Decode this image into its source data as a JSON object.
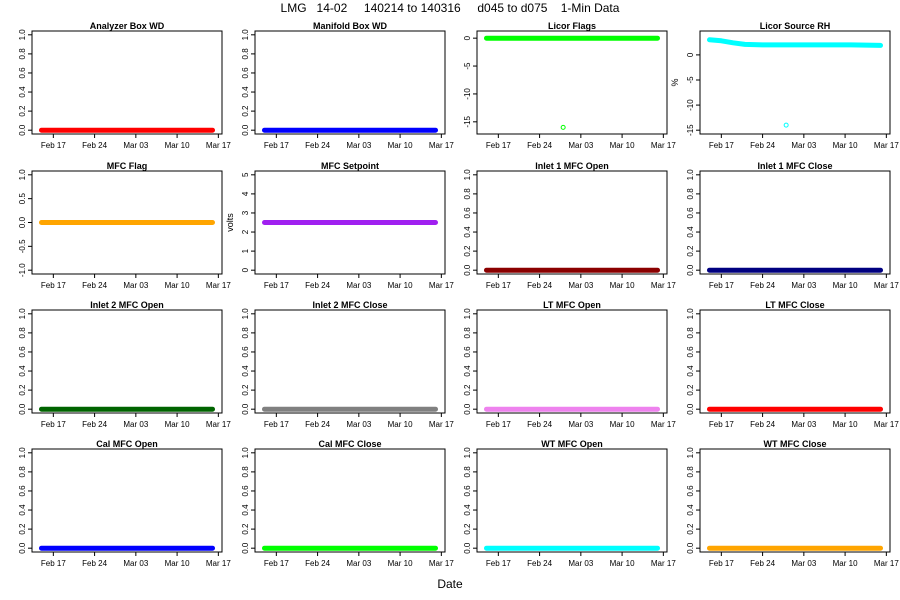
{
  "figure": {
    "title": "LMG   14-02     140214 to 140316     d045 to d075    1-Min Data",
    "xlabel": "Date"
  },
  "x_axis": {
    "range": [
      "2014-02-14",
      "2014-03-17"
    ],
    "ticks": [
      "2014-02-17",
      "2014-02-24",
      "2014-03-03",
      "2014-03-10",
      "2014-03-17"
    ],
    "tick_labels": [
      "Feb 17",
      "Feb 24",
      "Mar 03",
      "Mar 10",
      "Mar 17"
    ]
  },
  "chart_data": [
    {
      "type": "scatter",
      "title": "Analyzer Box WD",
      "ylabel": "",
      "color": "#ff0000",
      "ylim": [
        0,
        1
      ],
      "yticks": [
        "0.0",
        "0.2",
        "0.4",
        "0.6",
        "0.8",
        "1.0"
      ],
      "series": [
        {
          "x": [
            "2014-02-15",
            "2014-03-16"
          ],
          "y": [
            0,
            0
          ]
        }
      ],
      "outliers": []
    },
    {
      "type": "scatter",
      "title": "Manifold Box WD",
      "ylabel": "",
      "color": "#0000ff",
      "ylim": [
        0,
        1
      ],
      "yticks": [
        "0.0",
        "0.2",
        "0.4",
        "0.6",
        "0.8",
        "1.0"
      ],
      "series": [
        {
          "x": [
            "2014-02-15",
            "2014-03-16"
          ],
          "y": [
            0,
            0
          ]
        }
      ],
      "outliers": []
    },
    {
      "type": "scatter",
      "title": "Licor Flags",
      "ylabel": "",
      "color": "#00ff00",
      "ylim": [
        -16.5,
        0.6
      ],
      "yticks": [
        "-15",
        "-10",
        "-5",
        "0"
      ],
      "series": [
        {
          "x": [
            "2014-02-15",
            "2014-03-16"
          ],
          "y": [
            0,
            0
          ]
        }
      ],
      "outliers": [
        {
          "x": "2014-02-28",
          "y": -16
        }
      ]
    },
    {
      "type": "scatter",
      "title": "Licor Source RH",
      "ylabel": "%",
      "color": "#00ffff",
      "ylim": [
        -15,
        4
      ],
      "yticks": [
        "-15",
        "-10",
        "-5",
        "0"
      ],
      "series": [
        {
          "x": [
            "2014-02-15",
            "2014-02-17",
            "2014-02-19",
            "2014-02-21",
            "2014-02-24",
            "2014-03-01",
            "2014-03-06",
            "2014-03-11",
            "2014-03-16"
          ],
          "y": [
            3.0,
            2.8,
            2.4,
            2.1,
            2.0,
            2.0,
            2.0,
            2.0,
            1.9
          ]
        }
      ],
      "outliers": [
        {
          "x": "2014-02-28",
          "y": -14
        }
      ]
    },
    {
      "type": "scatter",
      "title": "MFC Flag",
      "ylabel": "",
      "color": "#ffa500",
      "ylim": [
        -1,
        1
      ],
      "yticks": [
        "-1.0",
        "-0.5",
        "0.0",
        "0.5",
        "1.0"
      ],
      "series": [
        {
          "x": [
            "2014-02-15",
            "2014-03-16"
          ],
          "y": [
            0,
            0
          ]
        }
      ],
      "outliers": []
    },
    {
      "type": "scatter",
      "title": "MFC Setpoint",
      "ylabel": "volts",
      "color": "#a020f0",
      "ylim": [
        0,
        5
      ],
      "yticks": [
        "0",
        "1",
        "2",
        "3",
        "4",
        "5"
      ],
      "series": [
        {
          "x": [
            "2014-02-15",
            "2014-03-16"
          ],
          "y": [
            2.5,
            2.5
          ]
        }
      ],
      "outliers": []
    },
    {
      "type": "scatter",
      "title": "Inlet 1 MFC Open",
      "ylabel": "",
      "color": "#8b0000",
      "ylim": [
        0,
        1
      ],
      "yticks": [
        "0.0",
        "0.2",
        "0.4",
        "0.6",
        "0.8",
        "1.0"
      ],
      "series": [
        {
          "x": [
            "2014-02-15",
            "2014-03-16"
          ],
          "y": [
            0,
            0
          ]
        }
      ],
      "outliers": []
    },
    {
      "type": "scatter",
      "title": "Inlet 1 MFC Close",
      "ylabel": "",
      "color": "#000080",
      "ylim": [
        0,
        1
      ],
      "yticks": [
        "0.0",
        "0.2",
        "0.4",
        "0.6",
        "0.8",
        "1.0"
      ],
      "series": [
        {
          "x": [
            "2014-02-15",
            "2014-03-16"
          ],
          "y": [
            0,
            0
          ]
        }
      ],
      "outliers": []
    },
    {
      "type": "scatter",
      "title": "Inlet 2 MFC Open",
      "ylabel": "",
      "color": "#006400",
      "ylim": [
        0,
        1
      ],
      "yticks": [
        "0.0",
        "0.2",
        "0.4",
        "0.6",
        "0.8",
        "1.0"
      ],
      "series": [
        {
          "x": [
            "2014-02-15",
            "2014-03-16"
          ],
          "y": [
            0,
            0
          ]
        }
      ],
      "outliers": []
    },
    {
      "type": "scatter",
      "title": "Inlet 2 MFC Close",
      "ylabel": "",
      "color": "#808080",
      "ylim": [
        0,
        1
      ],
      "yticks": [
        "0.0",
        "0.2",
        "0.4",
        "0.6",
        "0.8",
        "1.0"
      ],
      "series": [
        {
          "x": [
            "2014-02-15",
            "2014-03-16"
          ],
          "y": [
            0,
            0
          ]
        }
      ],
      "outliers": []
    },
    {
      "type": "scatter",
      "title": "LT MFC Open",
      "ylabel": "",
      "color": "#ee82ee",
      "ylim": [
        0,
        1
      ],
      "yticks": [
        "0.0",
        "0.2",
        "0.4",
        "0.6",
        "0.8",
        "1.0"
      ],
      "series": [
        {
          "x": [
            "2014-02-15",
            "2014-03-16"
          ],
          "y": [
            0,
            0
          ]
        }
      ],
      "outliers": []
    },
    {
      "type": "scatter",
      "title": "LT MFC Close",
      "ylabel": "",
      "color": "#ff0000",
      "ylim": [
        0,
        1
      ],
      "yticks": [
        "0.0",
        "0.2",
        "0.4",
        "0.6",
        "0.8",
        "1.0"
      ],
      "series": [
        {
          "x": [
            "2014-02-15",
            "2014-03-16"
          ],
          "y": [
            0,
            0
          ]
        }
      ],
      "outliers": []
    },
    {
      "type": "scatter",
      "title": "Cal MFC Open",
      "ylabel": "",
      "color": "#0000ff",
      "ylim": [
        0,
        1
      ],
      "yticks": [
        "0.0",
        "0.2",
        "0.4",
        "0.6",
        "0.8",
        "1.0"
      ],
      "series": [
        {
          "x": [
            "2014-02-15",
            "2014-03-16"
          ],
          "y": [
            0,
            0
          ]
        }
      ],
      "outliers": []
    },
    {
      "type": "scatter",
      "title": "Cal MFC Close",
      "ylabel": "",
      "color": "#00ff00",
      "ylim": [
        0,
        1
      ],
      "yticks": [
        "0.0",
        "0.2",
        "0.4",
        "0.6",
        "0.8",
        "1.0"
      ],
      "series": [
        {
          "x": [
            "2014-02-15",
            "2014-03-16"
          ],
          "y": [
            0,
            0
          ]
        }
      ],
      "outliers": []
    },
    {
      "type": "scatter",
      "title": "WT MFC Open",
      "ylabel": "",
      "color": "#00ffff",
      "ylim": [
        0,
        1
      ],
      "yticks": [
        "0.0",
        "0.2",
        "0.4",
        "0.6",
        "0.8",
        "1.0"
      ],
      "series": [
        {
          "x": [
            "2014-02-15",
            "2014-03-16"
          ],
          "y": [
            0,
            0
          ]
        }
      ],
      "outliers": []
    },
    {
      "type": "scatter",
      "title": "WT MFC Close",
      "ylabel": "",
      "color": "#ffa500",
      "ylim": [
        0,
        1
      ],
      "yticks": [
        "0.0",
        "0.2",
        "0.4",
        "0.6",
        "0.8",
        "1.0"
      ],
      "series": [
        {
          "x": [
            "2014-02-15",
            "2014-03-16"
          ],
          "y": [
            0,
            0
          ]
        }
      ],
      "outliers": []
    }
  ]
}
